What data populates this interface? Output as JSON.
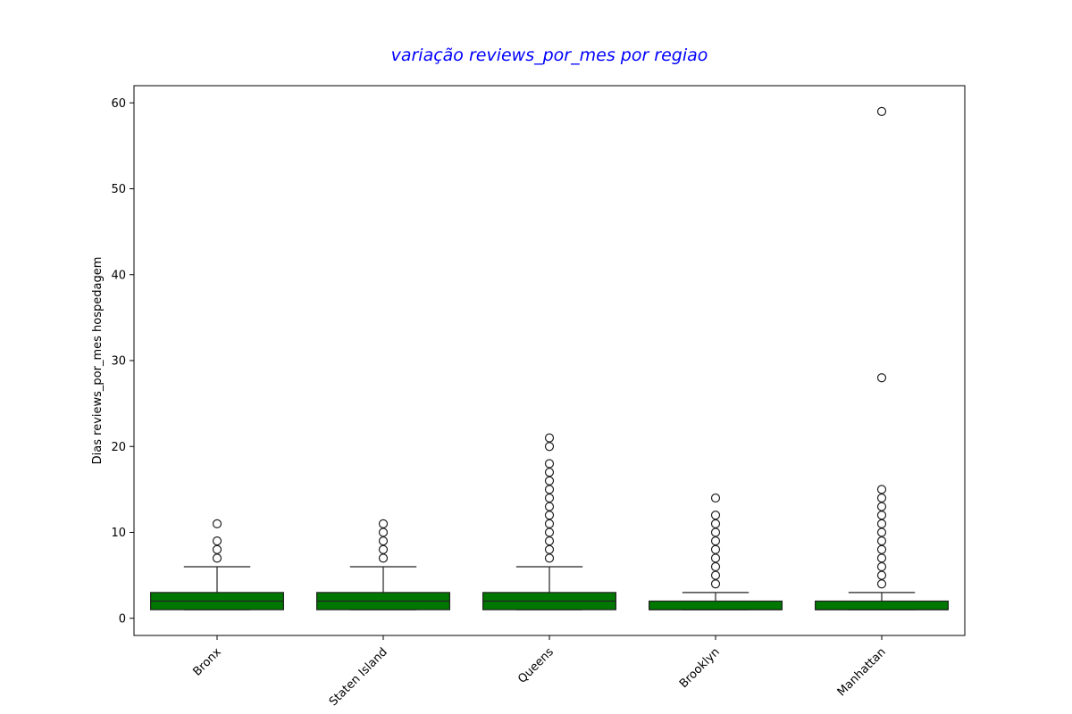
{
  "chart_data": {
    "type": "box",
    "title": "variação reviews_por_mes por regiao",
    "xlabel": "",
    "ylabel": "Dias reviews_por_mes hospedagem",
    "ylim": [
      -2,
      62
    ],
    "yticks": [
      0,
      10,
      20,
      30,
      40,
      50,
      60
    ],
    "grid": false,
    "legend": "none",
    "colors": {
      "title": "#0000ff",
      "box_fill": "#007700",
      "box_edge": "#222222",
      "outlier_edge": "#222222"
    },
    "categories": [
      "Bronx",
      "Staten Island",
      "Queens",
      "Brooklyn",
      "Manhattan"
    ],
    "boxes": [
      {
        "category": "Bronx",
        "whisker_low": 1,
        "q1": 1,
        "median": 2,
        "q3": 3,
        "whisker_high": 6,
        "outliers": [
          7,
          8,
          9,
          11
        ]
      },
      {
        "category": "Staten Island",
        "whisker_low": 1,
        "q1": 1,
        "median": 2,
        "q3": 3,
        "whisker_high": 6,
        "outliers": [
          7,
          8,
          9,
          10,
          11
        ]
      },
      {
        "category": "Queens",
        "whisker_low": 1,
        "q1": 1,
        "median": 2,
        "q3": 3,
        "whisker_high": 6,
        "outliers": [
          7,
          8,
          9,
          10,
          11,
          12,
          13,
          14,
          15,
          16,
          17,
          18,
          20,
          21
        ]
      },
      {
        "category": "Brooklyn",
        "whisker_low": 1,
        "q1": 1,
        "median": 1,
        "q3": 2,
        "whisker_high": 3,
        "outliers": [
          4,
          5,
          6,
          7,
          8,
          9,
          10,
          11,
          12,
          14
        ]
      },
      {
        "category": "Manhattan",
        "whisker_low": 1,
        "q1": 1,
        "median": 1,
        "q3": 2,
        "whisker_high": 3,
        "outliers": [
          4,
          5,
          6,
          7,
          8,
          9,
          10,
          11,
          12,
          13,
          14,
          15,
          28,
          59
        ]
      }
    ]
  }
}
